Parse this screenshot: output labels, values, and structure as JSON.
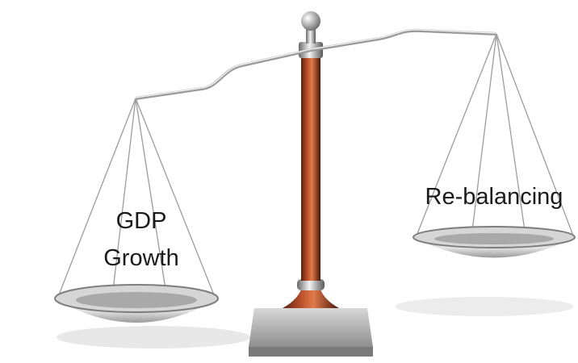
{
  "left_label": [
    "GDP",
    "Growth"
  ],
  "right_label": "Re-balancing"
}
